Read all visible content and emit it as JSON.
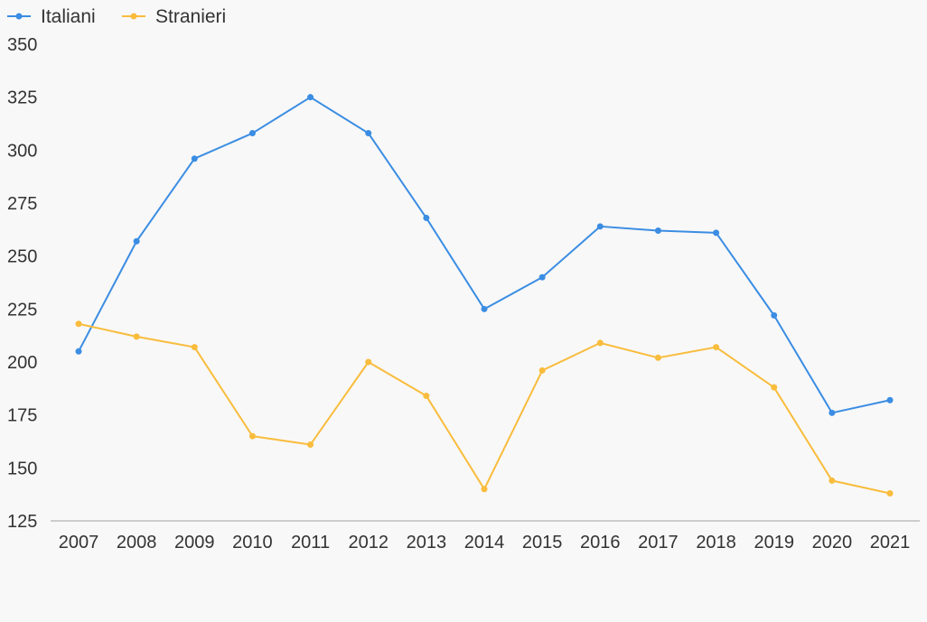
{
  "chart_data": {
    "type": "line",
    "title": "",
    "xlabel": "",
    "ylabel": "",
    "categories": [
      "2007",
      "2008",
      "2009",
      "2010",
      "2011",
      "2012",
      "2013",
      "2014",
      "2015",
      "2016",
      "2017",
      "2018",
      "2019",
      "2020",
      "2021"
    ],
    "yticks": [
      125,
      150,
      175,
      200,
      225,
      250,
      275,
      300,
      325,
      350
    ],
    "ylim": [
      125,
      350
    ],
    "grid": false,
    "legend_position": "top-left",
    "series": [
      {
        "name": "Italiani",
        "color": "#3b8de3",
        "values": [
          205,
          257,
          296,
          308,
          325,
          308,
          268,
          225,
          240,
          264,
          262,
          261,
          222,
          176,
          182
        ]
      },
      {
        "name": "Stranieri",
        "color": "#f9bc3c",
        "values": [
          218,
          212,
          207,
          165,
          161,
          200,
          184,
          140,
          196,
          209,
          202,
          207,
          188,
          144,
          138
        ]
      }
    ]
  }
}
